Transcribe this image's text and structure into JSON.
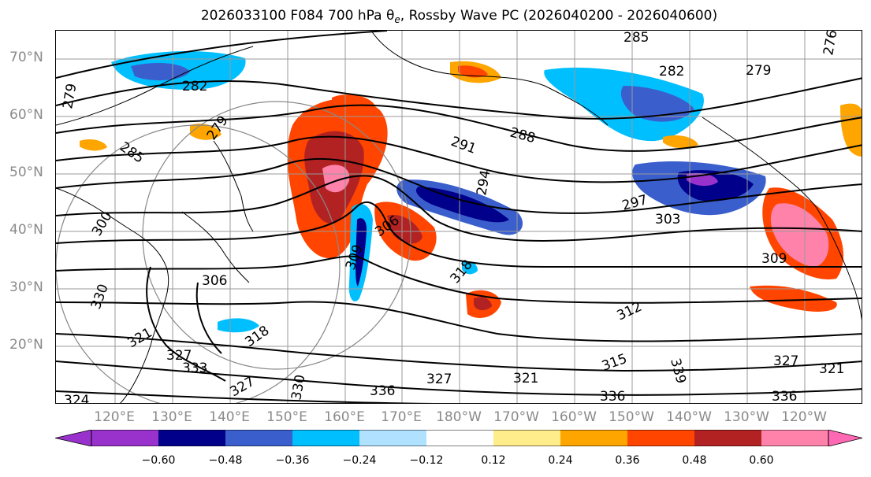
{
  "title": {
    "prefix": "2026033100 F084 700 hPa θ",
    "sub": "e",
    "suffix": ", Rossby Wave PC (2026040200 - 2026040600)"
  },
  "lat_labels": [
    "70°N",
    "60°N",
    "50°N",
    "40°N",
    "30°N",
    "20°N"
  ],
  "lon_labels": [
    "120°E",
    "130°E",
    "140°E",
    "150°E",
    "160°E",
    "170°E",
    "180°W",
    "170°W",
    "160°W",
    "150°W",
    "140°W",
    "130°W",
    "120°W"
  ],
  "contour_labels": [
    "285",
    "282",
    "279",
    "279",
    "282",
    "276",
    "279",
    "285",
    "279",
    "291",
    "288",
    "294",
    "297",
    "300",
    "303",
    "306",
    "306",
    "309",
    "309",
    "312",
    "315",
    "318",
    "318",
    "321",
    "321",
    "321",
    "324",
    "327",
    "327",
    "327",
    "327",
    "330",
    "330",
    "333",
    "336",
    "336",
    "336",
    "339"
  ],
  "colorbar": {
    "ticks": [
      "−0.60",
      "−0.48",
      "−0.36",
      "−0.24",
      "−0.12",
      "0.12",
      "0.24",
      "0.36",
      "0.48",
      "0.60"
    ],
    "colors": [
      "#9932cc",
      "#00008b",
      "#3a5fcd",
      "#00bfff",
      "#b0e2ff",
      "#ffffff",
      "#ffec8b",
      "#ffa500",
      "#ff4500",
      "#b22222",
      "#ff82ab",
      "#ff69b4"
    ]
  }
}
